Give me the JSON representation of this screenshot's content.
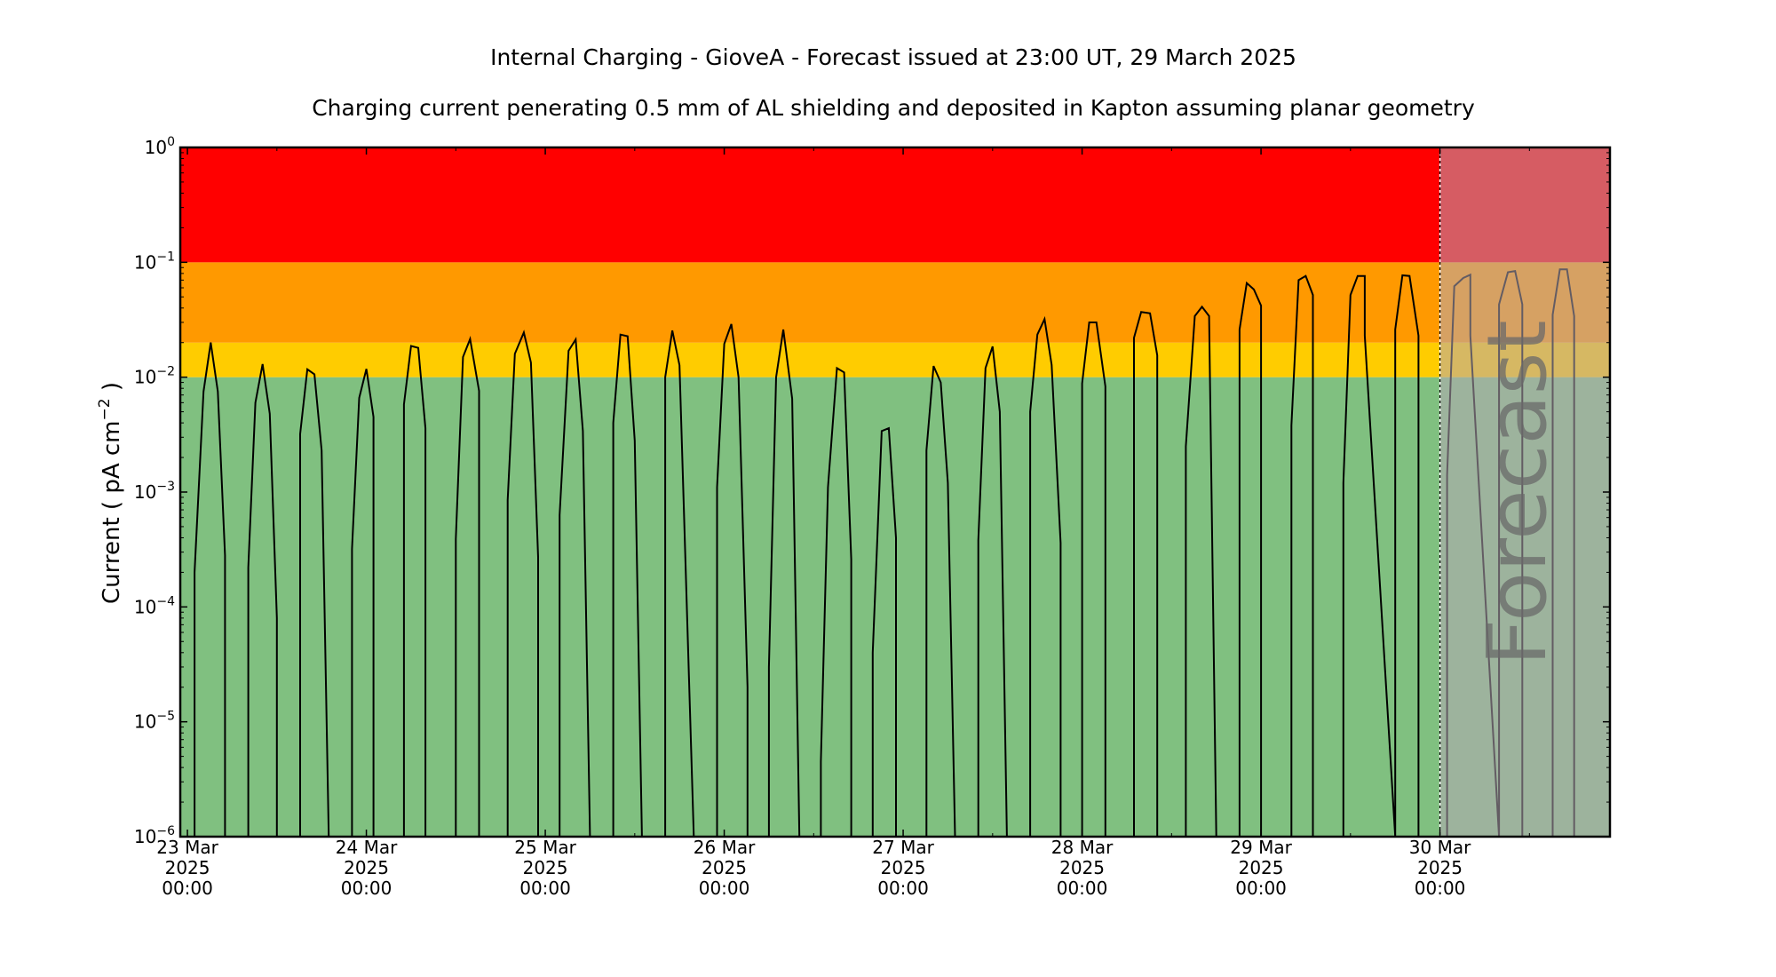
{
  "chart_data": {
    "type": "line",
    "title": "Internal Charging - GioveA - Forecast issued at 23:00 UT, 29 March 2025",
    "subtitle": "Charging current penerating 0.5 mm of AL shielding and deposited in Kapton assuming planar geometry",
    "xlabel": "",
    "ylabel": "Current ( pA cm",
    "ylabel_exp": "−2",
    "ylabel_tail": " )",
    "yscale": "log",
    "ylim": [
      1e-06,
      1
    ],
    "xlim": [
      -0.04,
      7.95
    ],
    "forecast_start": 7.0,
    "forecast_label": "Forecast",
    "y_ticks": [
      {
        "value": 1e-06,
        "exp": "−6"
      },
      {
        "value": 1e-05,
        "exp": "−5"
      },
      {
        "value": 0.0001,
        "exp": "−4"
      },
      {
        "value": 0.001,
        "exp": "−3"
      },
      {
        "value": 0.01,
        "exp": "−2"
      },
      {
        "value": 0.1,
        "exp": "−1"
      },
      {
        "value": 1,
        "exp": "0"
      }
    ],
    "x_ticks": [
      {
        "x": 0,
        "line1": "23 Mar",
        "line2": "2025",
        "line3": "00:00"
      },
      {
        "x": 1,
        "line1": "24 Mar",
        "line2": "2025",
        "line3": "00:00"
      },
      {
        "x": 2,
        "line1": "25 Mar",
        "line2": "2025",
        "line3": "00:00"
      },
      {
        "x": 3,
        "line1": "26 Mar",
        "line2": "2025",
        "line3": "00:00"
      },
      {
        "x": 4,
        "line1": "27 Mar",
        "line2": "2025",
        "line3": "00:00"
      },
      {
        "x": 5,
        "line1": "28 Mar",
        "line2": "2025",
        "line3": "00:00"
      },
      {
        "x": 6,
        "line1": "29 Mar",
        "line2": "2025",
        "line3": "00:00"
      },
      {
        "x": 7,
        "line1": "30 Mar",
        "line2": "2025",
        "line3": "00:00"
      }
    ],
    "bands": [
      {
        "from": 1e-06,
        "to": 0.01,
        "color": "#80c080"
      },
      {
        "from": 0.01,
        "to": 0.02,
        "color": "#ffcc00"
      },
      {
        "from": 0.02,
        "to": 0.1,
        "color": "#ff9900"
      },
      {
        "from": 0.1,
        "to": 1,
        "color": "#ff0000"
      }
    ],
    "forecast_overlay_color": "#b4a8b4",
    "forecast_text_color": "#6a6a6a",
    "series": [
      {
        "x": [
          0.04,
          0.04,
          0.09,
          0.13,
          0.17,
          0.21,
          0.21,
          0.34,
          0.34,
          0.38,
          0.42,
          0.46,
          0.5,
          0.5,
          0.63,
          0.63,
          0.67,
          0.71,
          0.75,
          0.79,
          0.79,
          0.92,
          0.92,
          0.96,
          1.0,
          1.04,
          1.04,
          1.21,
          1.21,
          1.25,
          1.29,
          1.33,
          1.33,
          1.5,
          1.5,
          1.54,
          1.58,
          1.63,
          1.63,
          1.79,
          1.79,
          1.83,
          1.88,
          1.92,
          1.96,
          1.96,
          2.08,
          2.08,
          2.13,
          2.17,
          2.21,
          2.25,
          2.25,
          2.38,
          2.38,
          2.42,
          2.46,
          2.5,
          2.54,
          2.54,
          2.67,
          2.67,
          2.71,
          2.75,
          2.79,
          2.83,
          2.83,
          2.96,
          2.96,
          3.0,
          3.04,
          3.08,
          3.13,
          3.13,
          3.25,
          3.25,
          3.29,
          3.33,
          3.38,
          3.42,
          3.42,
          3.54,
          3.54,
          3.58,
          3.63,
          3.67,
          3.71,
          3.71,
          3.83,
          3.83,
          3.88,
          3.92,
          3.96,
          3.96,
          4.13,
          4.13,
          4.17,
          4.21,
          4.25,
          4.29,
          4.29,
          4.42,
          4.42,
          4.46,
          4.5,
          4.54,
          4.58,
          4.58,
          4.71,
          4.71,
          4.75,
          4.79,
          4.83,
          4.88,
          4.88,
          5.0,
          5.0,
          5.04,
          5.08,
          5.13,
          5.13,
          5.29,
          5.29,
          5.33,
          5.38,
          5.42,
          5.42,
          5.58,
          5.58,
          5.63,
          5.67,
          5.71,
          5.75,
          5.75,
          5.88,
          5.88,
          5.92,
          5.96,
          6.0,
          6.0,
          6.17,
          6.17,
          6.21,
          6.25,
          6.29,
          6.29,
          6.46,
          6.46,
          6.5,
          6.54,
          6.58,
          6.58,
          6.75,
          6.75,
          6.79,
          6.83,
          6.88,
          6.88,
          7.04,
          7.04,
          7.08,
          7.13,
          7.17,
          7.17,
          7.33,
          7.33,
          7.38,
          7.42,
          7.46,
          7.46,
          7.63,
          7.63,
          7.67,
          7.71,
          7.75,
          7.75
        ],
        "y": [
          1e-06,
          0.0002,
          0.0075,
          0.02,
          0.0075,
          0.00028,
          1e-06,
          1e-06,
          0.00022,
          0.006,
          0.013,
          0.0048,
          8e-05,
          1e-06,
          1e-06,
          0.0032,
          0.0117,
          0.0106,
          0.0023,
          1e-06,
          1e-06,
          1e-06,
          0.00032,
          0.0066,
          0.0118,
          0.0045,
          1e-06,
          1e-06,
          0.0058,
          0.0187,
          0.018,
          0.0036,
          1e-06,
          1e-06,
          0.00039,
          0.015,
          0.0215,
          0.0076,
          1e-06,
          1e-06,
          0.00085,
          0.016,
          0.0245,
          0.0134,
          0.00027,
          1e-06,
          1e-06,
          0.00063,
          0.017,
          0.0213,
          0.0034,
          1e-06,
          1e-06,
          1e-06,
          0.004,
          0.0235,
          0.0227,
          0.0028,
          1e-06,
          1e-06,
          1e-06,
          0.01,
          0.0255,
          0.0127,
          0.00011,
          1e-06,
          1e-06,
          1e-06,
          0.0011,
          0.0195,
          0.029,
          0.01,
          2e-05,
          1e-06,
          1e-06,
          3e-05,
          0.01,
          0.026,
          0.0065,
          1e-06,
          1e-06,
          1e-06,
          4.5e-06,
          0.0011,
          0.012,
          0.011,
          0.00026,
          1e-06,
          1e-06,
          4e-05,
          0.0034,
          0.0036,
          0.0004,
          1e-06,
          1e-06,
          0.0023,
          0.0125,
          0.009,
          0.0012,
          1e-06,
          1e-06,
          1e-06,
          0.00038,
          0.012,
          0.0185,
          0.005,
          1e-06,
          1e-06,
          1e-06,
          0.005,
          0.0235,
          0.032,
          0.0128,
          0.00036,
          1e-06,
          1e-06,
          0.0088,
          0.03,
          0.03,
          0.0083,
          1e-06,
          1e-06,
          0.022,
          0.037,
          0.036,
          0.0155,
          1e-06,
          1e-06,
          0.0025,
          0.034,
          0.041,
          0.034,
          1e-06,
          1e-06,
          1e-06,
          0.026,
          0.066,
          0.058,
          0.042,
          1e-06,
          1e-06,
          0.0038,
          0.07,
          0.076,
          0.052,
          1e-06,
          1e-06,
          0.0012,
          0.052,
          0.076,
          0.076,
          0.023,
          1e-06,
          0.026,
          0.077,
          0.076,
          0.023,
          1e-06,
          1e-06,
          0.0014,
          0.062,
          0.073,
          0.078,
          0.023,
          1e-06,
          0.043,
          0.082,
          0.084,
          0.043,
          1e-06,
          1e-06,
          0.035,
          0.087,
          0.087,
          0.034,
          1e-06
        ]
      }
    ]
  }
}
